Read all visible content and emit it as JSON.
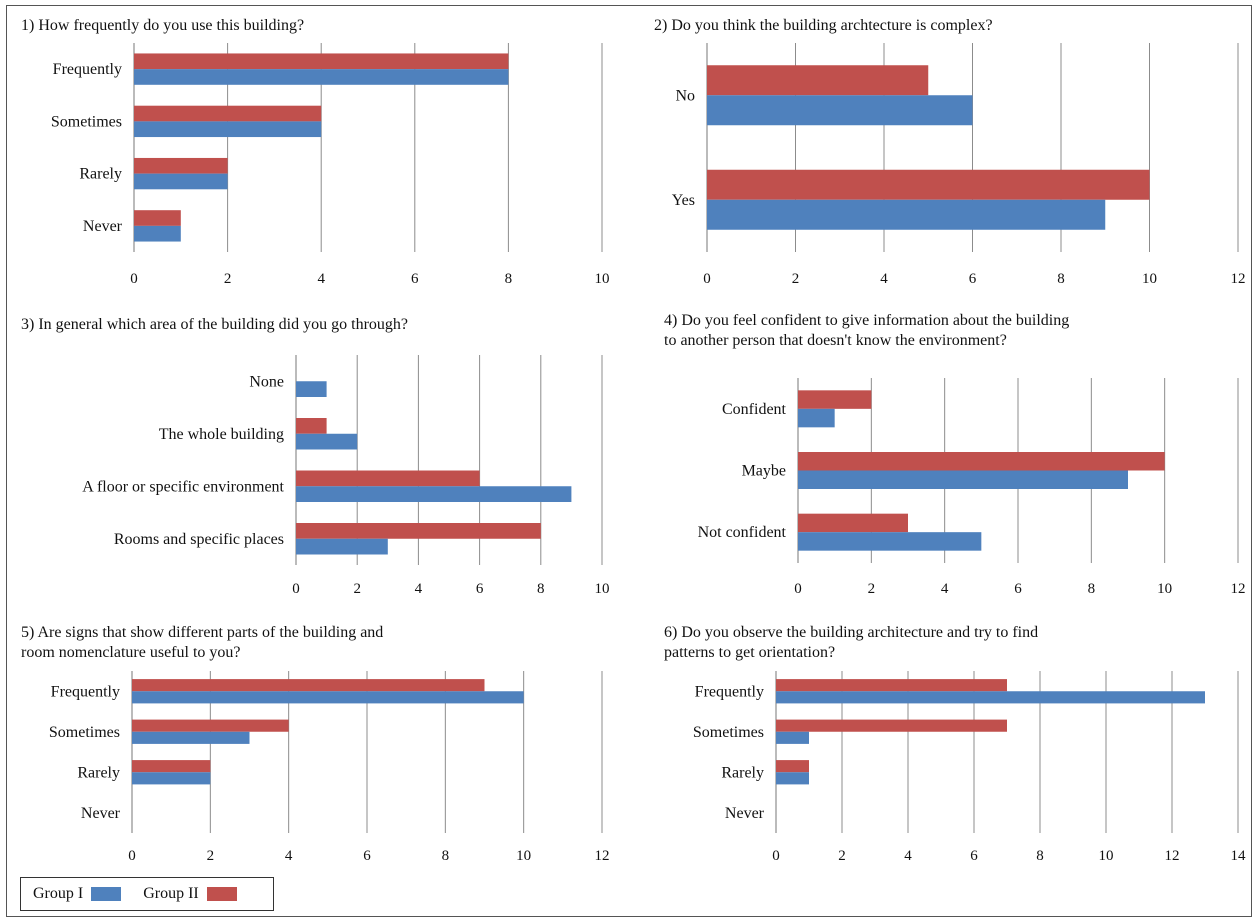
{
  "colors": {
    "group1": "#4f81bd",
    "group2": "#c0504d"
  },
  "legend": [
    {
      "label": "Group I",
      "color": "#4f81bd"
    },
    {
      "label": "Group II",
      "color": "#c0504d"
    }
  ],
  "chart_data": [
    {
      "type": "bar",
      "orientation": "horizontal",
      "title": [
        "1) How frequently do you use this building?"
      ],
      "categories": [
        "Frequently",
        "Sometimes",
        "Rarely",
        "Never"
      ],
      "series": [
        {
          "name": "Group I",
          "values": [
            8,
            4,
            2,
            1
          ]
        },
        {
          "name": "Group II",
          "values": [
            8,
            4,
            2,
            1
          ]
        }
      ],
      "xlim": [
        0,
        10
      ],
      "xticks": [
        0,
        2,
        4,
        6,
        8,
        10
      ],
      "grid": true
    },
    {
      "type": "bar",
      "orientation": "horizontal",
      "title": [
        "2) Do you think the building archtecture is complex?"
      ],
      "categories": [
        "No",
        "Yes"
      ],
      "series": [
        {
          "name": "Group I",
          "values": [
            6,
            9
          ]
        },
        {
          "name": "Group II",
          "values": [
            5,
            10
          ]
        }
      ],
      "xlim": [
        0,
        12
      ],
      "xticks": [
        0,
        2,
        4,
        6,
        8,
        10,
        12
      ],
      "grid": true
    },
    {
      "type": "bar",
      "orientation": "horizontal",
      "title": [
        "3) In general which area of the building did you go through?"
      ],
      "categories": [
        "None",
        "The whole building",
        "A floor or specific environment",
        "Rooms and specific places"
      ],
      "series": [
        {
          "name": "Group I",
          "values": [
            1,
            2,
            9,
            3
          ]
        },
        {
          "name": "Group II",
          "values": [
            0,
            1,
            6,
            8
          ]
        }
      ],
      "xlim": [
        0,
        10
      ],
      "xticks": [
        0,
        2,
        4,
        6,
        8,
        10
      ],
      "grid": true
    },
    {
      "type": "bar",
      "orientation": "horizontal",
      "title": [
        "4) Do you feel confident to give information  about the building",
        "to another person that doesn't know the environment?"
      ],
      "categories": [
        "Confident",
        "Maybe",
        "Not confident"
      ],
      "series": [
        {
          "name": "Group I",
          "values": [
            1,
            9,
            5
          ]
        },
        {
          "name": "Group II",
          "values": [
            2,
            10,
            3
          ]
        }
      ],
      "xlim": [
        0,
        12
      ],
      "xticks": [
        0,
        2,
        4,
        6,
        8,
        10,
        12
      ],
      "grid": true
    },
    {
      "type": "bar",
      "orientation": "horizontal",
      "title": [
        "5) Are signs that show different parts of the building and",
        "room nomenclature  useful to you?"
      ],
      "categories": [
        "Frequently",
        "Sometimes",
        "Rarely",
        "Never"
      ],
      "series": [
        {
          "name": "Group I",
          "values": [
            10,
            3,
            2,
            0
          ]
        },
        {
          "name": "Group II",
          "values": [
            9,
            4,
            2,
            0
          ]
        }
      ],
      "xlim": [
        0,
        12
      ],
      "xticks": [
        0,
        2,
        4,
        6,
        8,
        10,
        12
      ],
      "grid": true
    },
    {
      "type": "bar",
      "orientation": "horizontal",
      "title": [
        "6) Do you observe the building architecture and try to find",
        "patterns to get orientation?"
      ],
      "categories": [
        "Frequently",
        "Sometimes",
        "Rarely",
        "Never"
      ],
      "series": [
        {
          "name": "Group I",
          "values": [
            13,
            1,
            1,
            0
          ]
        },
        {
          "name": "Group II",
          "values": [
            7,
            7,
            1,
            0
          ]
        }
      ],
      "xlim": [
        0,
        14
      ],
      "xticks": [
        0,
        2,
        4,
        6,
        8,
        10,
        12,
        14
      ],
      "grid": true
    }
  ]
}
